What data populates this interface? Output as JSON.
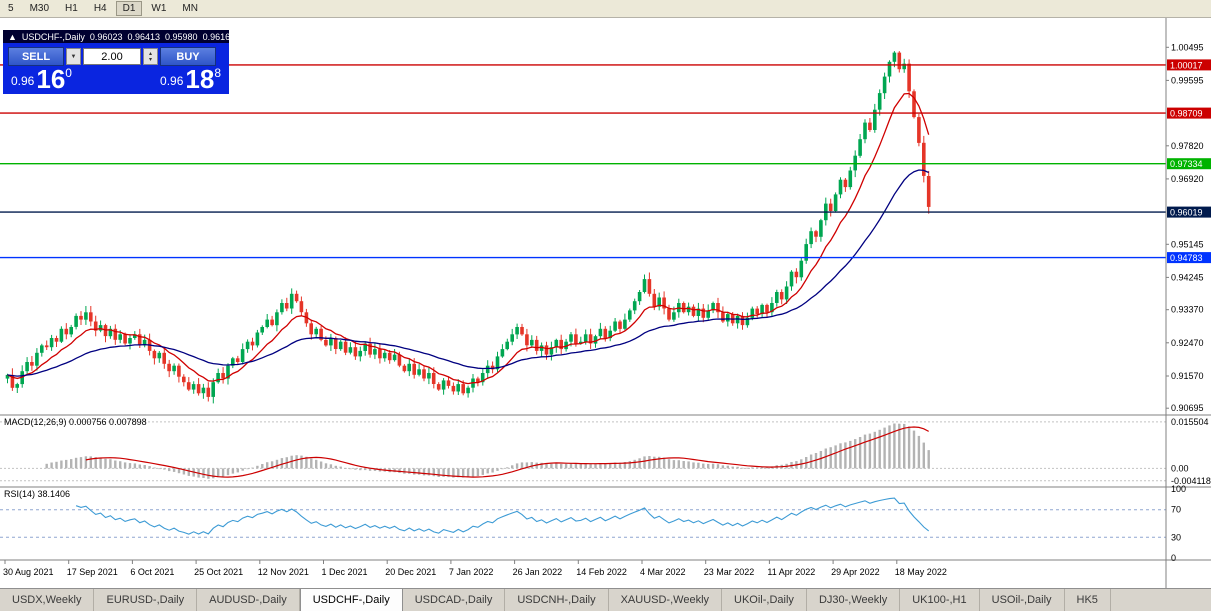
{
  "toolbar": {
    "timeframes": [
      "5",
      "M30",
      "H1",
      "H4",
      "D1",
      "W1",
      "MN"
    ],
    "active": "D1"
  },
  "chart_header": {
    "collapse_icon": "▲",
    "symbol": "USDCHF-,Daily",
    "open": "0.96023",
    "high": "0.96413",
    "low": "0.95980",
    "close": "0.96160"
  },
  "trade_panel": {
    "sell_label": "SELL",
    "buy_label": "BUY",
    "volume": "2.00",
    "dropdown_icon": "▼",
    "spin_up_icon": "▴",
    "spin_down_icon": "▾",
    "sell_price": {
      "base": "0.96",
      "pips": "16",
      "frac": "0"
    },
    "buy_price": {
      "base": "0.96",
      "pips": "18",
      "frac": "8"
    }
  },
  "chart_data": {
    "type": "candlestick",
    "symbol": "USDCHF-,Daily",
    "ylim": [
      0.9051,
      1.0129
    ],
    "first_open": 0.915,
    "closes": [
      0.916,
      0.9125,
      0.9135,
      0.917,
      0.9195,
      0.9185,
      0.922,
      0.924,
      0.9235,
      0.926,
      0.925,
      0.9285,
      0.927,
      0.929,
      0.932,
      0.931,
      0.933,
      0.9305,
      0.928,
      0.9295,
      0.9265,
      0.9285,
      0.9255,
      0.927,
      0.9245,
      0.926,
      0.927,
      0.924,
      0.9255,
      0.9225,
      0.9205,
      0.922,
      0.919,
      0.917,
      0.9185,
      0.9155,
      0.914,
      0.912,
      0.9135,
      0.911,
      0.9125,
      0.91,
      0.914,
      0.9165,
      0.915,
      0.9185,
      0.9205,
      0.9195,
      0.923,
      0.925,
      0.924,
      0.9275,
      0.929,
      0.931,
      0.9295,
      0.933,
      0.9355,
      0.934,
      0.938,
      0.936,
      0.933,
      0.93,
      0.927,
      0.9285,
      0.9255,
      0.924,
      0.926,
      0.923,
      0.925,
      0.922,
      0.9235,
      0.921,
      0.9225,
      0.9245,
      0.9215,
      0.923,
      0.9205,
      0.922,
      0.92,
      0.9215,
      0.9185,
      0.917,
      0.919,
      0.916,
      0.9175,
      0.915,
      0.9165,
      0.9135,
      0.912,
      0.9145,
      0.913,
      0.9115,
      0.9135,
      0.911,
      0.9125,
      0.915,
      0.914,
      0.9165,
      0.9185,
      0.9175,
      0.921,
      0.923,
      0.925,
      0.927,
      0.929,
      0.927,
      0.924,
      0.9255,
      0.9225,
      0.924,
      0.9215,
      0.9235,
      0.9255,
      0.923,
      0.925,
      0.927,
      0.9245,
      0.925,
      0.927,
      0.9245,
      0.9265,
      0.9285,
      0.926,
      0.928,
      0.9305,
      0.9285,
      0.931,
      0.9335,
      0.936,
      0.9385,
      0.942,
      0.938,
      0.9345,
      0.937,
      0.934,
      0.931,
      0.933,
      0.9355,
      0.933,
      0.9345,
      0.932,
      0.934,
      0.9315,
      0.9335,
      0.9355,
      0.933,
      0.9305,
      0.9325,
      0.93,
      0.932,
      0.9295,
      0.9315,
      0.934,
      0.9325,
      0.935,
      0.933,
      0.9355,
      0.9385,
      0.9365,
      0.94,
      0.944,
      0.9425,
      0.947,
      0.9515,
      0.955,
      0.9535,
      0.958,
      0.9625,
      0.9605,
      0.965,
      0.969,
      0.967,
      0.9715,
      0.9755,
      0.98,
      0.9845,
      0.9825,
      0.988,
      0.9925,
      0.997,
      1.001,
      1.0035,
      0.999,
      1.0005,
      0.993,
      0.986,
      0.979,
      0.97,
      0.9616
    ],
    "ma": {
      "fast": 10,
      "slow": 34
    },
    "levels": [
      {
        "price": 1.00017,
        "label": "1.00017",
        "color": "#cc0000"
      },
      {
        "price": 0.98709,
        "label": "0.98709",
        "color": "#cc0000"
      },
      {
        "price": 0.97334,
        "label": "0.97334",
        "color": "#00b300"
      },
      {
        "price": 0.96019,
        "label": "0.96019",
        "color": "#001a4d"
      },
      {
        "price": 0.94783,
        "label": "0.94783",
        "color": "#0033ff"
      }
    ],
    "price_ticks": [
      "1.00495",
      "0.99595",
      "0.97820",
      "0.96920",
      "0.95145",
      "0.94245",
      "0.93370",
      "0.92470",
      "0.91570",
      "0.90695"
    ],
    "macd": {
      "title": "MACD(12,26,9) 0.000756 0.007898",
      "params": [
        12,
        26,
        9
      ],
      "ylim": [
        -0.0062,
        0.0178
      ],
      "labels": [
        {
          "label": "0.015504",
          "value": 0.015504
        },
        {
          "label": "0.00",
          "value": 0
        },
        {
          "label": "-0.004118",
          "value": -0.004118
        }
      ]
    },
    "rsi": {
      "title": "RSI(14) 38.1406",
      "period": 14,
      "labels": [
        {
          "label": "100",
          "value": 100,
          "dashed": false
        },
        {
          "label": "70",
          "value": 70,
          "dashed": true
        },
        {
          "label": "30",
          "value": 30,
          "dashed": true
        },
        {
          "label": "0",
          "value": 0,
          "dashed": false
        }
      ]
    },
    "dates": [
      "30 Aug 2021",
      "17 Sep 2021",
      "6 Oct 2021",
      "25 Oct 2021",
      "12 Nov 2021",
      "1 Dec 2021",
      "20 Dec 2021",
      "7 Jan 2022",
      "26 Jan 2022",
      "14 Feb 2022",
      "4 Mar 2022",
      "23 Mar 2022",
      "11 Apr 2022",
      "29 Apr 2022",
      "18 May 2022"
    ],
    "colors": {
      "bull": "#00a651",
      "bear": "#e53528",
      "ma_fast": "#d00000",
      "ma_slow": "#000080",
      "macd_hist": "#b3b3b3",
      "macd_signal": "#cc0000",
      "rsi": "#3d9bd5"
    }
  },
  "tabs": [
    {
      "label": "USDX,Weekly",
      "active": false
    },
    {
      "label": "EURUSD-,Daily",
      "active": false
    },
    {
      "label": "AUDUSD-,Daily",
      "active": false
    },
    {
      "label": "USDCHF-,Daily",
      "active": true
    },
    {
      "label": "USDCAD-,Daily",
      "active": false
    },
    {
      "label": "USDCNH-,Daily",
      "active": false
    },
    {
      "label": "XAUUSD-,Weekly",
      "active": false
    },
    {
      "label": "UKOil-,Daily",
      "active": false
    },
    {
      "label": "DJ30-,Weekly",
      "active": false
    },
    {
      "label": "UK100-,H1",
      "active": false
    },
    {
      "label": "USOil-,Daily",
      "active": false
    },
    {
      "label": "HK5",
      "active": false
    }
  ]
}
